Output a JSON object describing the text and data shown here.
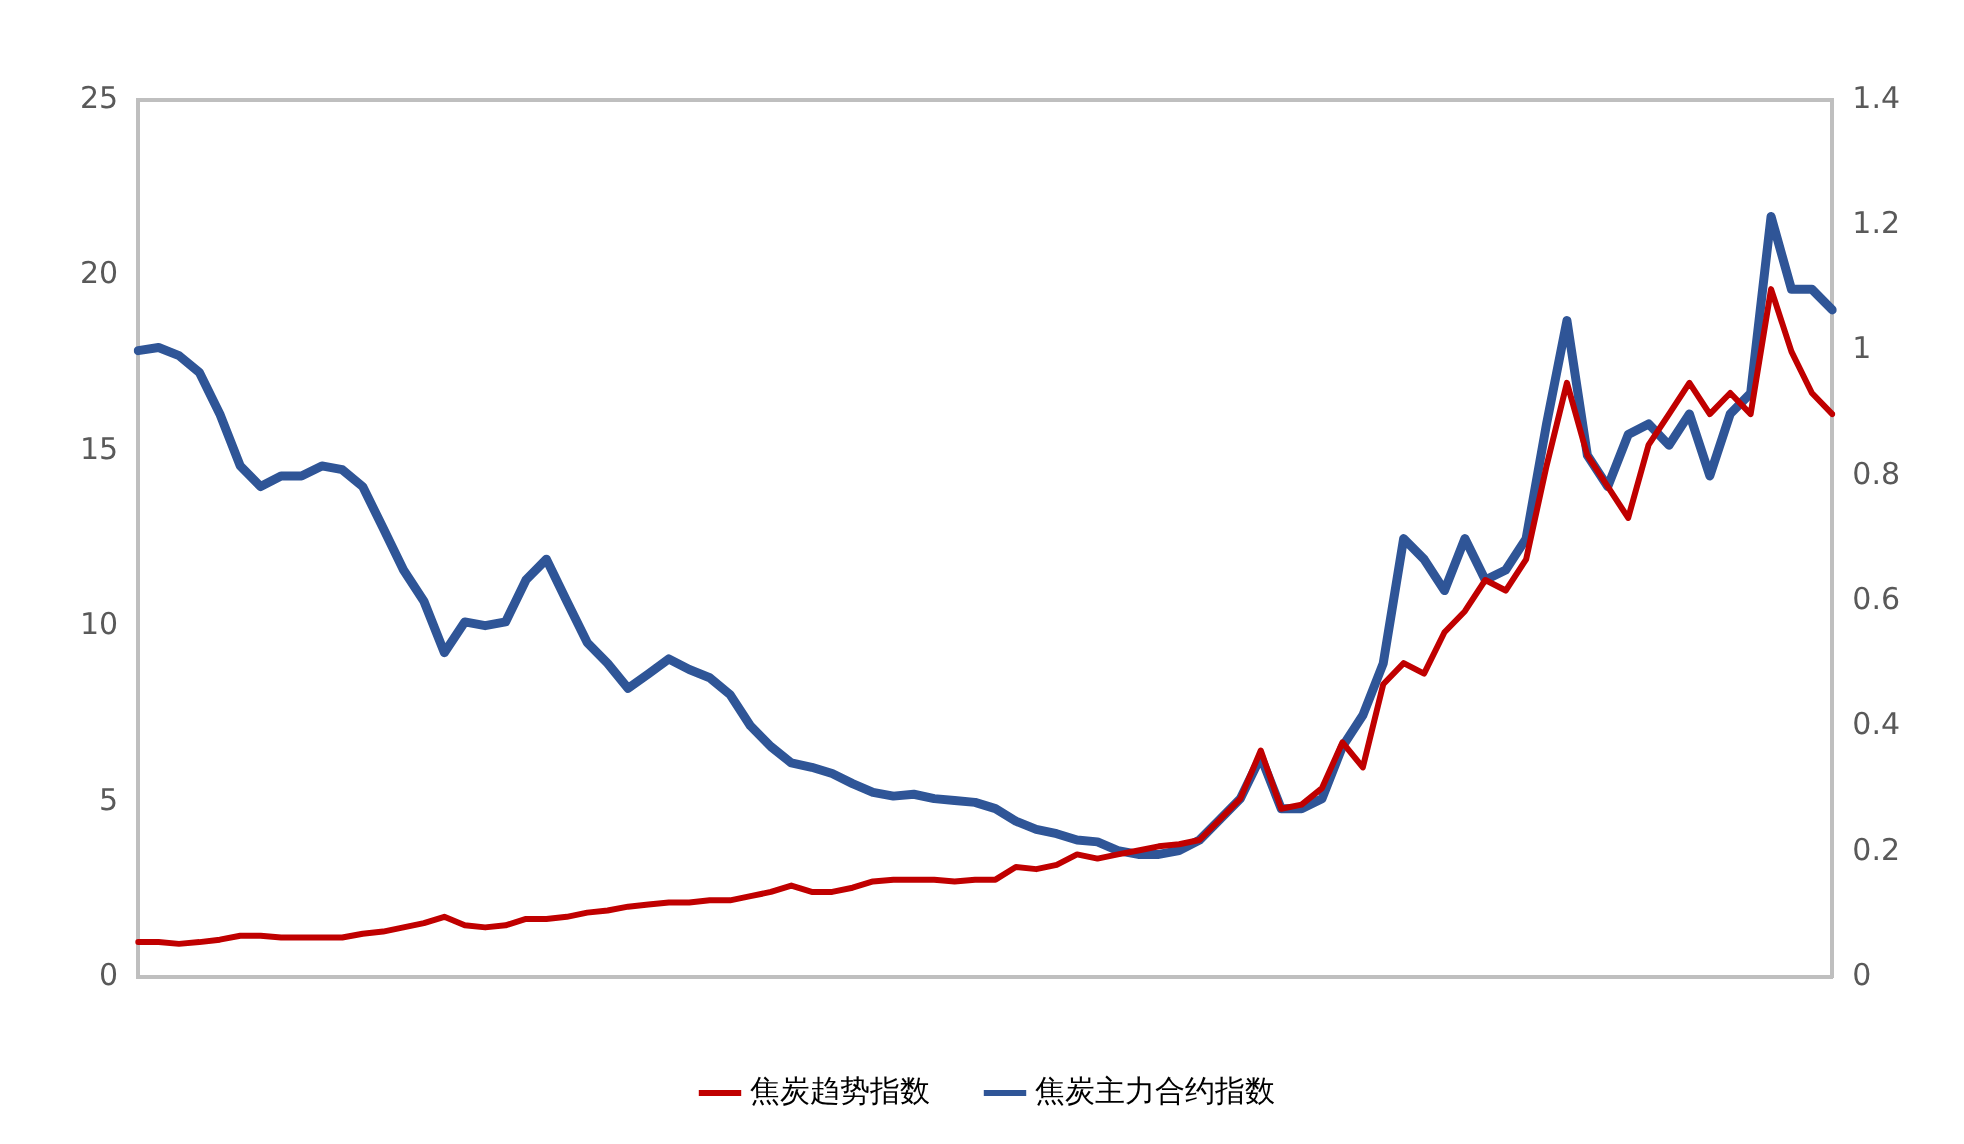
{
  "chart_data": {
    "type": "line",
    "categories": [
      null,
      null,
      null,
      null,
      null,
      null,
      null,
      null,
      null,
      null,
      null,
      null,
      null,
      null,
      null,
      null,
      null,
      null,
      null,
      null,
      null,
      null,
      null,
      null,
      null,
      null,
      null,
      null,
      null,
      null,
      null,
      null,
      null,
      null,
      null,
      null,
      null,
      null,
      null,
      null,
      null,
      null,
      null,
      null,
      null,
      null,
      null,
      null,
      null,
      null,
      null,
      null,
      null,
      null,
      null,
      null,
      null,
      null,
      null,
      null,
      null,
      null,
      null,
      null,
      null,
      null,
      null,
      null,
      null,
      null,
      null,
      null,
      null,
      null,
      null,
      null,
      null,
      null,
      null,
      null,
      null,
      null,
      null,
      null
    ],
    "series": [
      {
        "name": "焦炭趋势指数",
        "color": "#c00000",
        "axis": "y",
        "values": [
          1.0,
          1.0,
          0.95,
          1.0,
          1.07,
          1.18,
          1.18,
          1.13,
          1.13,
          1.13,
          1.13,
          1.24,
          1.3,
          1.42,
          1.54,
          1.72,
          1.48,
          1.42,
          1.48,
          1.66,
          1.66,
          1.72,
          1.84,
          1.9,
          2.01,
          2.07,
          2.13,
          2.13,
          2.19,
          2.19,
          2.31,
          2.43,
          2.61,
          2.43,
          2.43,
          2.55,
          2.73,
          2.78,
          2.78,
          2.78,
          2.73,
          2.78,
          2.78,
          3.14,
          3.08,
          3.2,
          3.5,
          3.38,
          3.5,
          3.61,
          3.73,
          3.79,
          3.91,
          4.5,
          5.09,
          6.46,
          4.8,
          4.92,
          5.39,
          6.69,
          5.98,
          8.35,
          8.95,
          8.65,
          9.83,
          10.43,
          11.32,
          11.02,
          11.91,
          14.57,
          16.94,
          14.87,
          13.98,
          13.09,
          15.17,
          16.05,
          16.94,
          16.05,
          16.65,
          16.05,
          19.61,
          17.83,
          16.65,
          16.05
        ]
      },
      {
        "name": "焦炭主力合约指数",
        "color": "#2f5597",
        "axis": "y2",
        "values": [
          1.0,
          1.005,
          0.992,
          0.965,
          0.899,
          0.816,
          0.783,
          0.8,
          0.8,
          0.816,
          0.81,
          0.783,
          0.717,
          0.65,
          0.6,
          0.518,
          0.567,
          0.561,
          0.567,
          0.634,
          0.667,
          0.6,
          0.534,
          0.501,
          0.461,
          0.484,
          0.508,
          0.491,
          0.478,
          0.451,
          0.401,
          0.368,
          0.342,
          0.335,
          0.325,
          0.309,
          0.295,
          0.289,
          0.292,
          0.285,
          0.282,
          0.279,
          0.269,
          0.249,
          0.236,
          0.229,
          0.219,
          0.216,
          0.202,
          0.196,
          0.196,
          0.202,
          0.219,
          0.252,
          0.285,
          0.352,
          0.269,
          0.269,
          0.285,
          0.368,
          0.418,
          0.501,
          0.7,
          0.667,
          0.617,
          0.7,
          0.634,
          0.65,
          0.7,
          0.883,
          1.048,
          0.833,
          0.783,
          0.866,
          0.883,
          0.849,
          0.899,
          0.8,
          0.899,
          0.932,
          1.214,
          1.098,
          1.098,
          1.065
        ]
      }
    ],
    "ylim": [
      0,
      25
    ],
    "yticks": [
      0,
      5,
      10,
      15,
      20,
      25
    ],
    "y2lim": [
      0,
      1.4
    ],
    "y2ticks": [
      0,
      0.2,
      0.4,
      0.6,
      0.8,
      1,
      1.2,
      1.4
    ],
    "grid": false,
    "legend": "bottom",
    "marker": "none",
    "line_style": "solid"
  }
}
